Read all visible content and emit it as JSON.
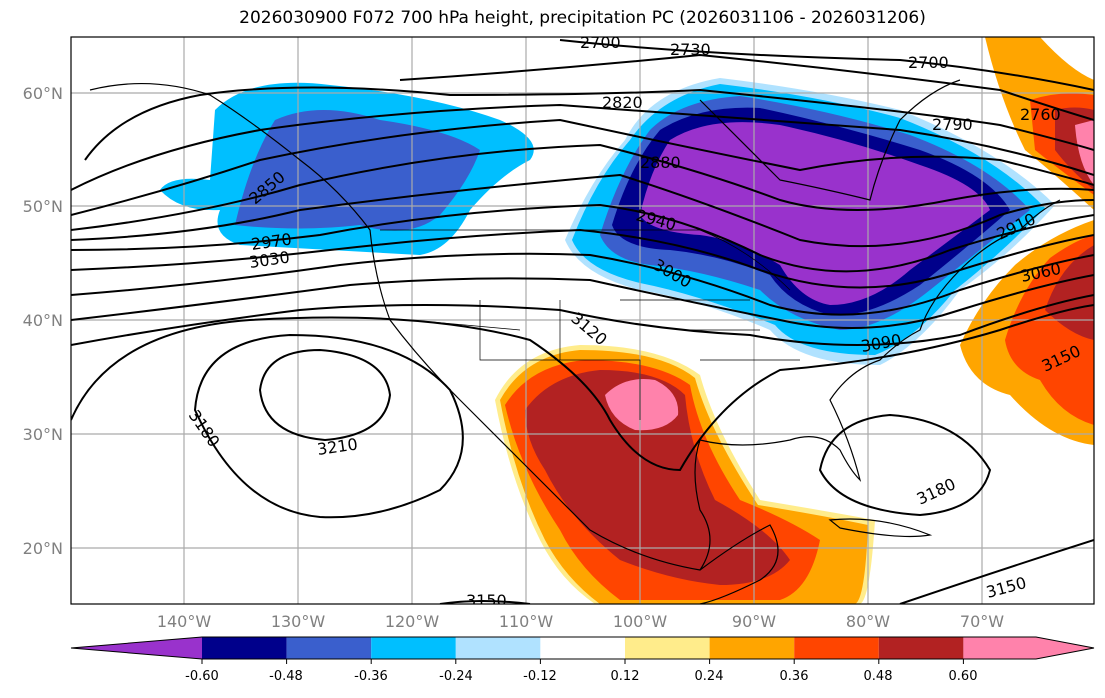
{
  "title": "2026030900 F072 700 hPa height, precipitation PC (2026031106 - 2026031206)",
  "map": {
    "extent_deg": {
      "lon": [
        -150,
        -60
      ],
      "lat": [
        15,
        65
      ]
    },
    "lat_ticks": [
      "60°N",
      "50°N",
      "40°N",
      "30°N",
      "20°N"
    ],
    "lon_ticks": [
      "140°W",
      "130°W",
      "120°W",
      "110°W",
      "100°W",
      "90°W",
      "80°W",
      "70°W"
    ],
    "contour_labels": [
      "2700",
      "2730",
      "2700",
      "2820",
      "2790",
      "2760",
      "2850",
      "2880",
      "2940",
      "2910",
      "2970",
      "3030",
      "3000",
      "3060",
      "3120",
      "3090",
      "3150",
      "3180",
      "3210",
      "3180",
      "3150",
      "3150"
    ]
  },
  "colorbar": {
    "ticks": [
      "-0.60",
      "-0.48",
      "-0.36",
      "-0.24",
      "-0.12",
      "0.12",
      "0.24",
      "0.36",
      "0.48",
      "0.60"
    ],
    "colors": [
      "#9932CC",
      "#00008B",
      "#3A5FCD",
      "#00BFFF",
      "#B0E2FF",
      "#FFFFFF",
      "#FFEC8B",
      "#FFA500",
      "#FF4500",
      "#B22222",
      "#FF82AB"
    ]
  }
}
